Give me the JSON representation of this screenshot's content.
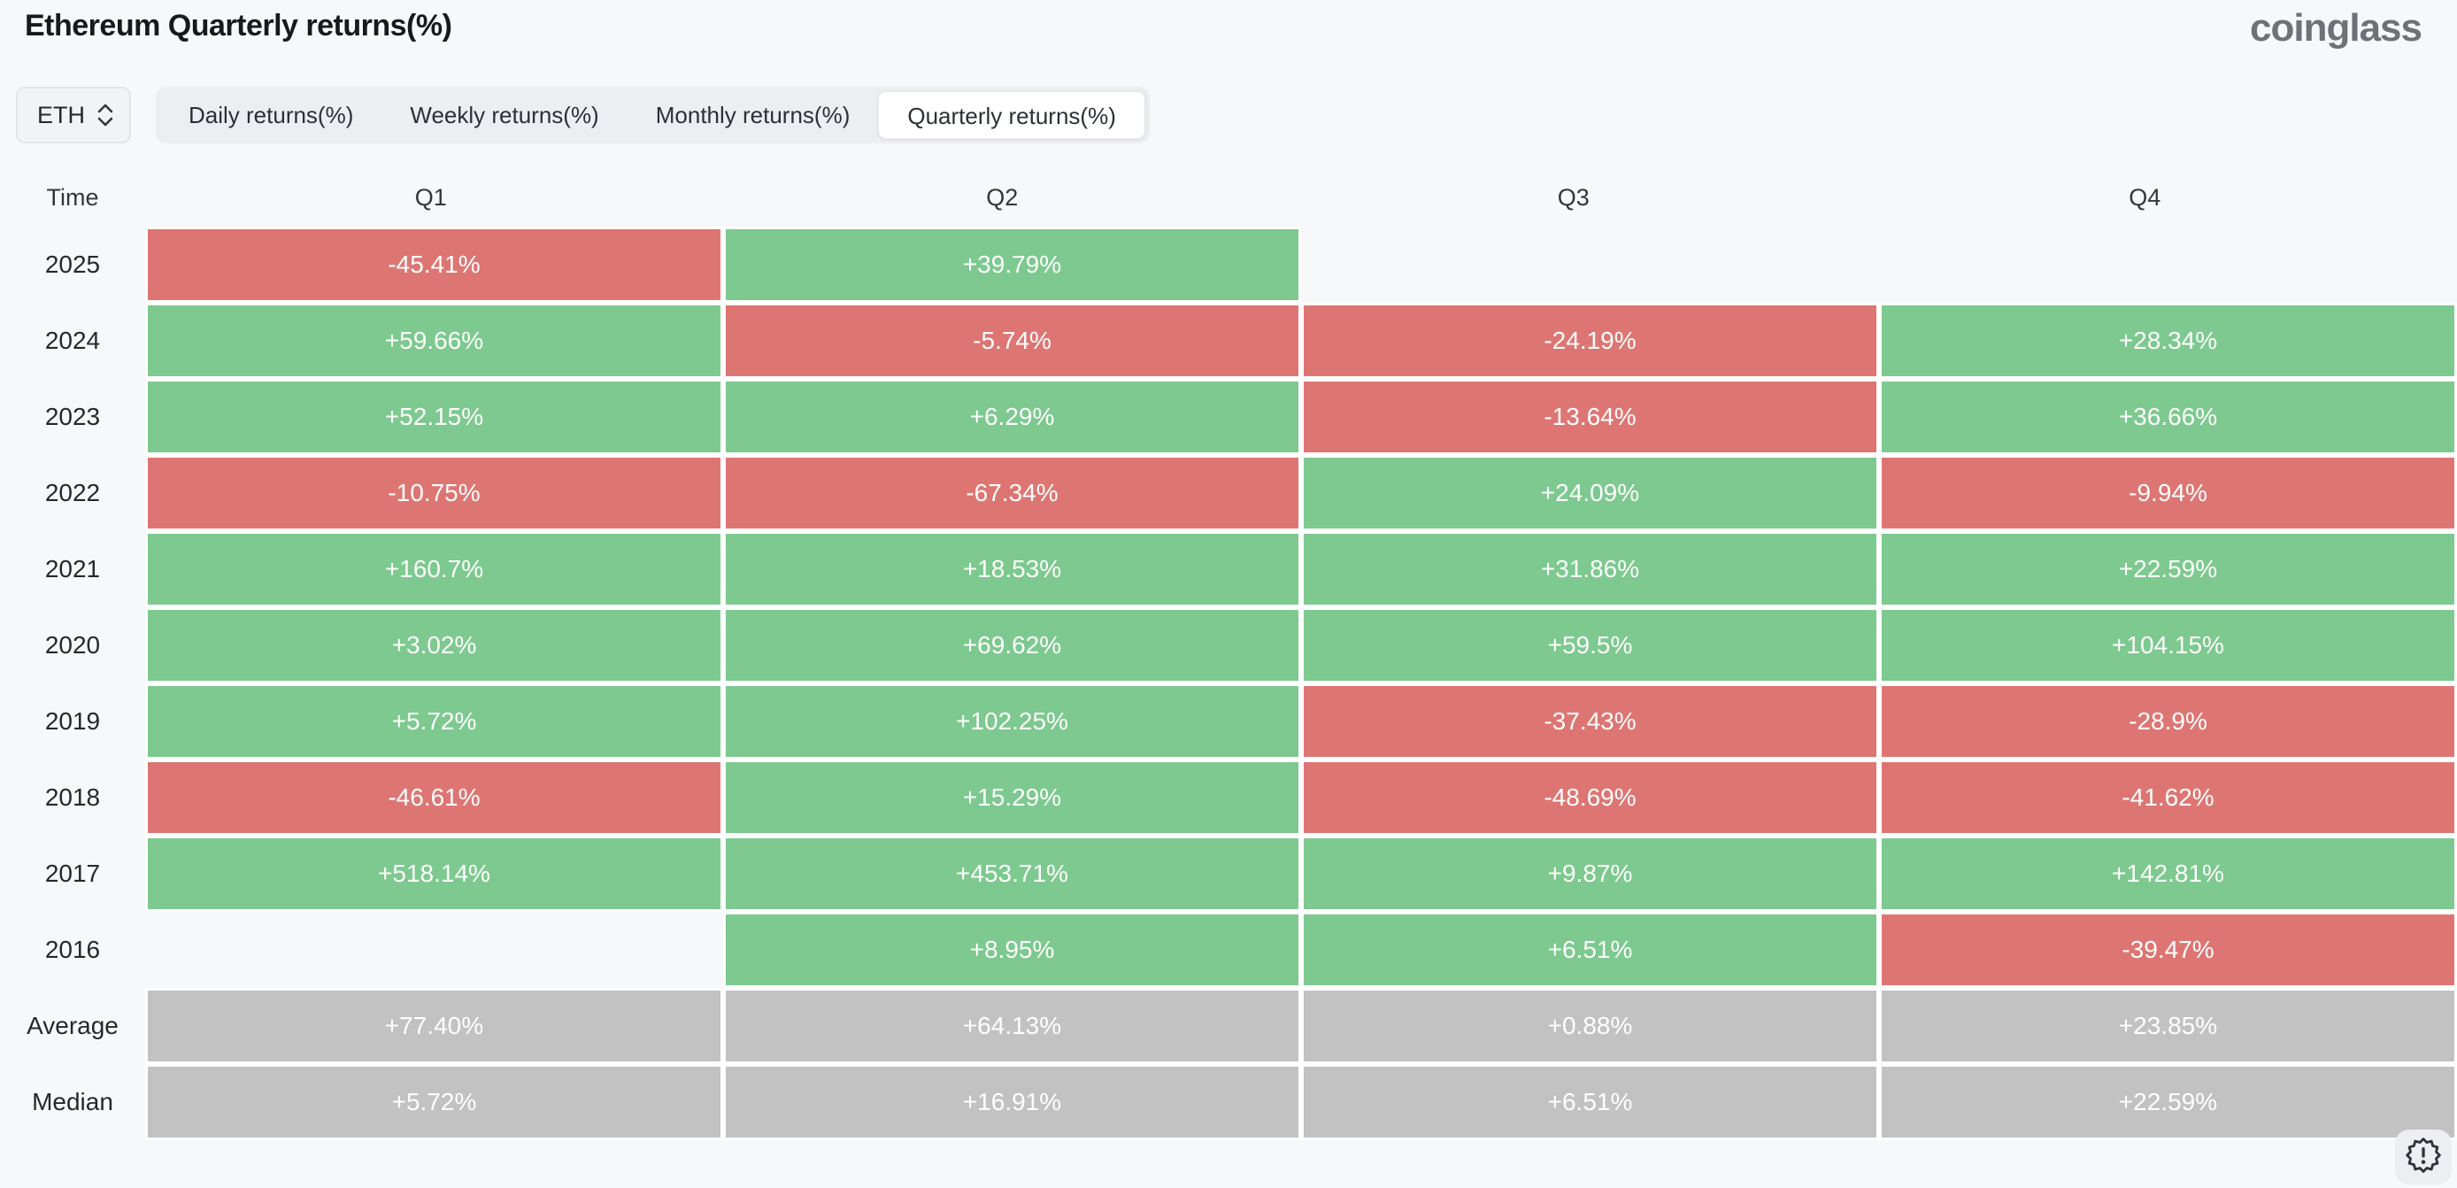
{
  "page": {
    "title": "Ethereum Quarterly returns(%)",
    "brand": "coinglass"
  },
  "controls": {
    "symbol_select": {
      "value": "ETH",
      "icon": "updown-chevron-icon"
    },
    "tabs": [
      {
        "label": "Daily returns(%)",
        "active": false
      },
      {
        "label": "Weekly returns(%)",
        "active": false
      },
      {
        "label": "Monthly returns(%)",
        "active": false
      },
      {
        "label": "Quarterly returns(%)",
        "active": true
      }
    ]
  },
  "chart_data": {
    "type": "heatmap",
    "title": "Ethereum Quarterly returns(%)",
    "columns": [
      "Time",
      "Q1",
      "Q2",
      "Q3",
      "Q4"
    ],
    "rows": [
      {
        "label": "2025",
        "kind": "year",
        "values": [
          "-45.41%",
          "+39.79%",
          null,
          null
        ]
      },
      {
        "label": "2024",
        "kind": "year",
        "values": [
          "+59.66%",
          "-5.74%",
          "-24.19%",
          "+28.34%"
        ]
      },
      {
        "label": "2023",
        "kind": "year",
        "values": [
          "+52.15%",
          "+6.29%",
          "-13.64%",
          "+36.66%"
        ]
      },
      {
        "label": "2022",
        "kind": "year",
        "values": [
          "-10.75%",
          "-67.34%",
          "+24.09%",
          "-9.94%"
        ]
      },
      {
        "label": "2021",
        "kind": "year",
        "values": [
          "+160.7%",
          "+18.53%",
          "+31.86%",
          "+22.59%"
        ]
      },
      {
        "label": "2020",
        "kind": "year",
        "values": [
          "+3.02%",
          "+69.62%",
          "+59.5%",
          "+104.15%"
        ]
      },
      {
        "label": "2019",
        "kind": "year",
        "values": [
          "+5.72%",
          "+102.25%",
          "-37.43%",
          "-28.9%"
        ]
      },
      {
        "label": "2018",
        "kind": "year",
        "values": [
          "-46.61%",
          "+15.29%",
          "-48.69%",
          "-41.62%"
        ]
      },
      {
        "label": "2017",
        "kind": "year",
        "values": [
          "+518.14%",
          "+453.71%",
          "+9.87%",
          "+142.81%"
        ]
      },
      {
        "label": "2016",
        "kind": "year",
        "values": [
          null,
          "+8.95%",
          "+6.51%",
          "-39.47%"
        ]
      },
      {
        "label": "Average",
        "kind": "aggregate",
        "values": [
          "+77.40%",
          "+64.13%",
          "+0.88%",
          "+23.85%"
        ]
      },
      {
        "label": "Median",
        "kind": "aggregate",
        "values": [
          "+5.72%",
          "+16.91%",
          "+6.51%",
          "+22.59%"
        ]
      }
    ],
    "legend": {
      "positive": "green",
      "negative": "red",
      "aggregate": "gray"
    }
  },
  "colors": {
    "positive": "#7dc98f",
    "negative": "#dd7673",
    "neutral": "#c2c2c3",
    "background": "#f7f8f9"
  },
  "footer": {
    "alert_icon": "badge-exclamation-icon"
  }
}
